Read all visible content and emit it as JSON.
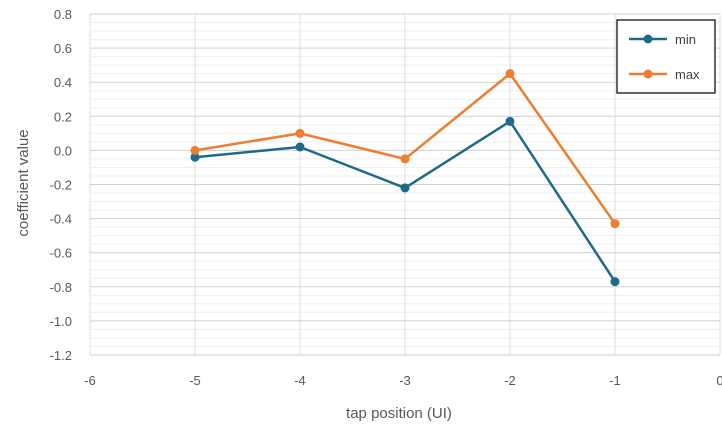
{
  "chart_data": {
    "type": "line",
    "title": "",
    "xlabel": "tap position (UI)",
    "ylabel": "coefficient value",
    "xlim": [
      -6,
      0
    ],
    "ylim": [
      -1.2,
      0.8
    ],
    "x_ticks": [
      "-6",
      "-5",
      "-4",
      "-3",
      "-2",
      "-1",
      "0"
    ],
    "y_ticks": [
      "0.8",
      "0.6",
      "0.4",
      "0.2",
      "0.0",
      "-0.2",
      "-0.4",
      "-0.6",
      "-0.8",
      "-1.0",
      "-1.2"
    ],
    "grid": true,
    "legend_position": "top-right",
    "x": [
      -5,
      -4,
      -3,
      -2,
      -1
    ],
    "series": [
      {
        "name": "min",
        "color": "#1f6a8a",
        "values": [
          -0.04,
          0.02,
          -0.22,
          0.17,
          -0.77
        ]
      },
      {
        "name": "max",
        "color": "#ed7d31",
        "values": [
          0.0,
          0.1,
          -0.05,
          0.45,
          -0.43
        ]
      }
    ]
  }
}
